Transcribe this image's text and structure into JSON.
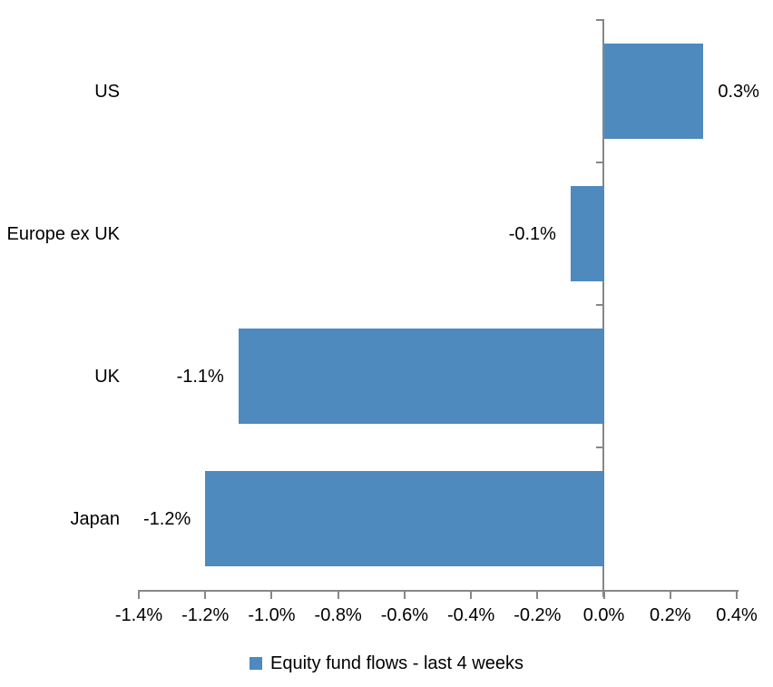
{
  "chart_data": {
    "type": "bar",
    "orientation": "horizontal",
    "title": "",
    "categories": [
      "US",
      "Europe ex UK",
      "UK",
      "Japan"
    ],
    "series": [
      {
        "name": "Equity fund flows - last 4 weeks",
        "values": [
          0.3,
          -0.1,
          -1.1,
          -1.2
        ],
        "data_labels": [
          "0.3%",
          "-0.1%",
          "-1.1%",
          "-1.2%"
        ]
      }
    ],
    "value_unit": "%",
    "xlabel": "",
    "ylabel": "",
    "xlim": [
      -1.4,
      0.4
    ],
    "x_ticks": [
      -1.4,
      -1.2,
      -1.0,
      -0.8,
      -0.6,
      -0.4,
      -0.2,
      0.0,
      0.2,
      0.4
    ],
    "x_tick_labels": [
      "-1.4%",
      "-1.2%",
      "-1.0%",
      "-0.8%",
      "-0.6%",
      "-0.4%",
      "-0.2%",
      "0.0%",
      "0.2%",
      "0.4%"
    ],
    "grid": false,
    "legend_position": "bottom",
    "bar_color": "#4E8ABE",
    "axis_color": "#878787",
    "text_color": "#000000"
  },
  "legend": {
    "label": "Equity fund flows - last 4 weeks",
    "swatch_color": "#4E8ABE"
  }
}
